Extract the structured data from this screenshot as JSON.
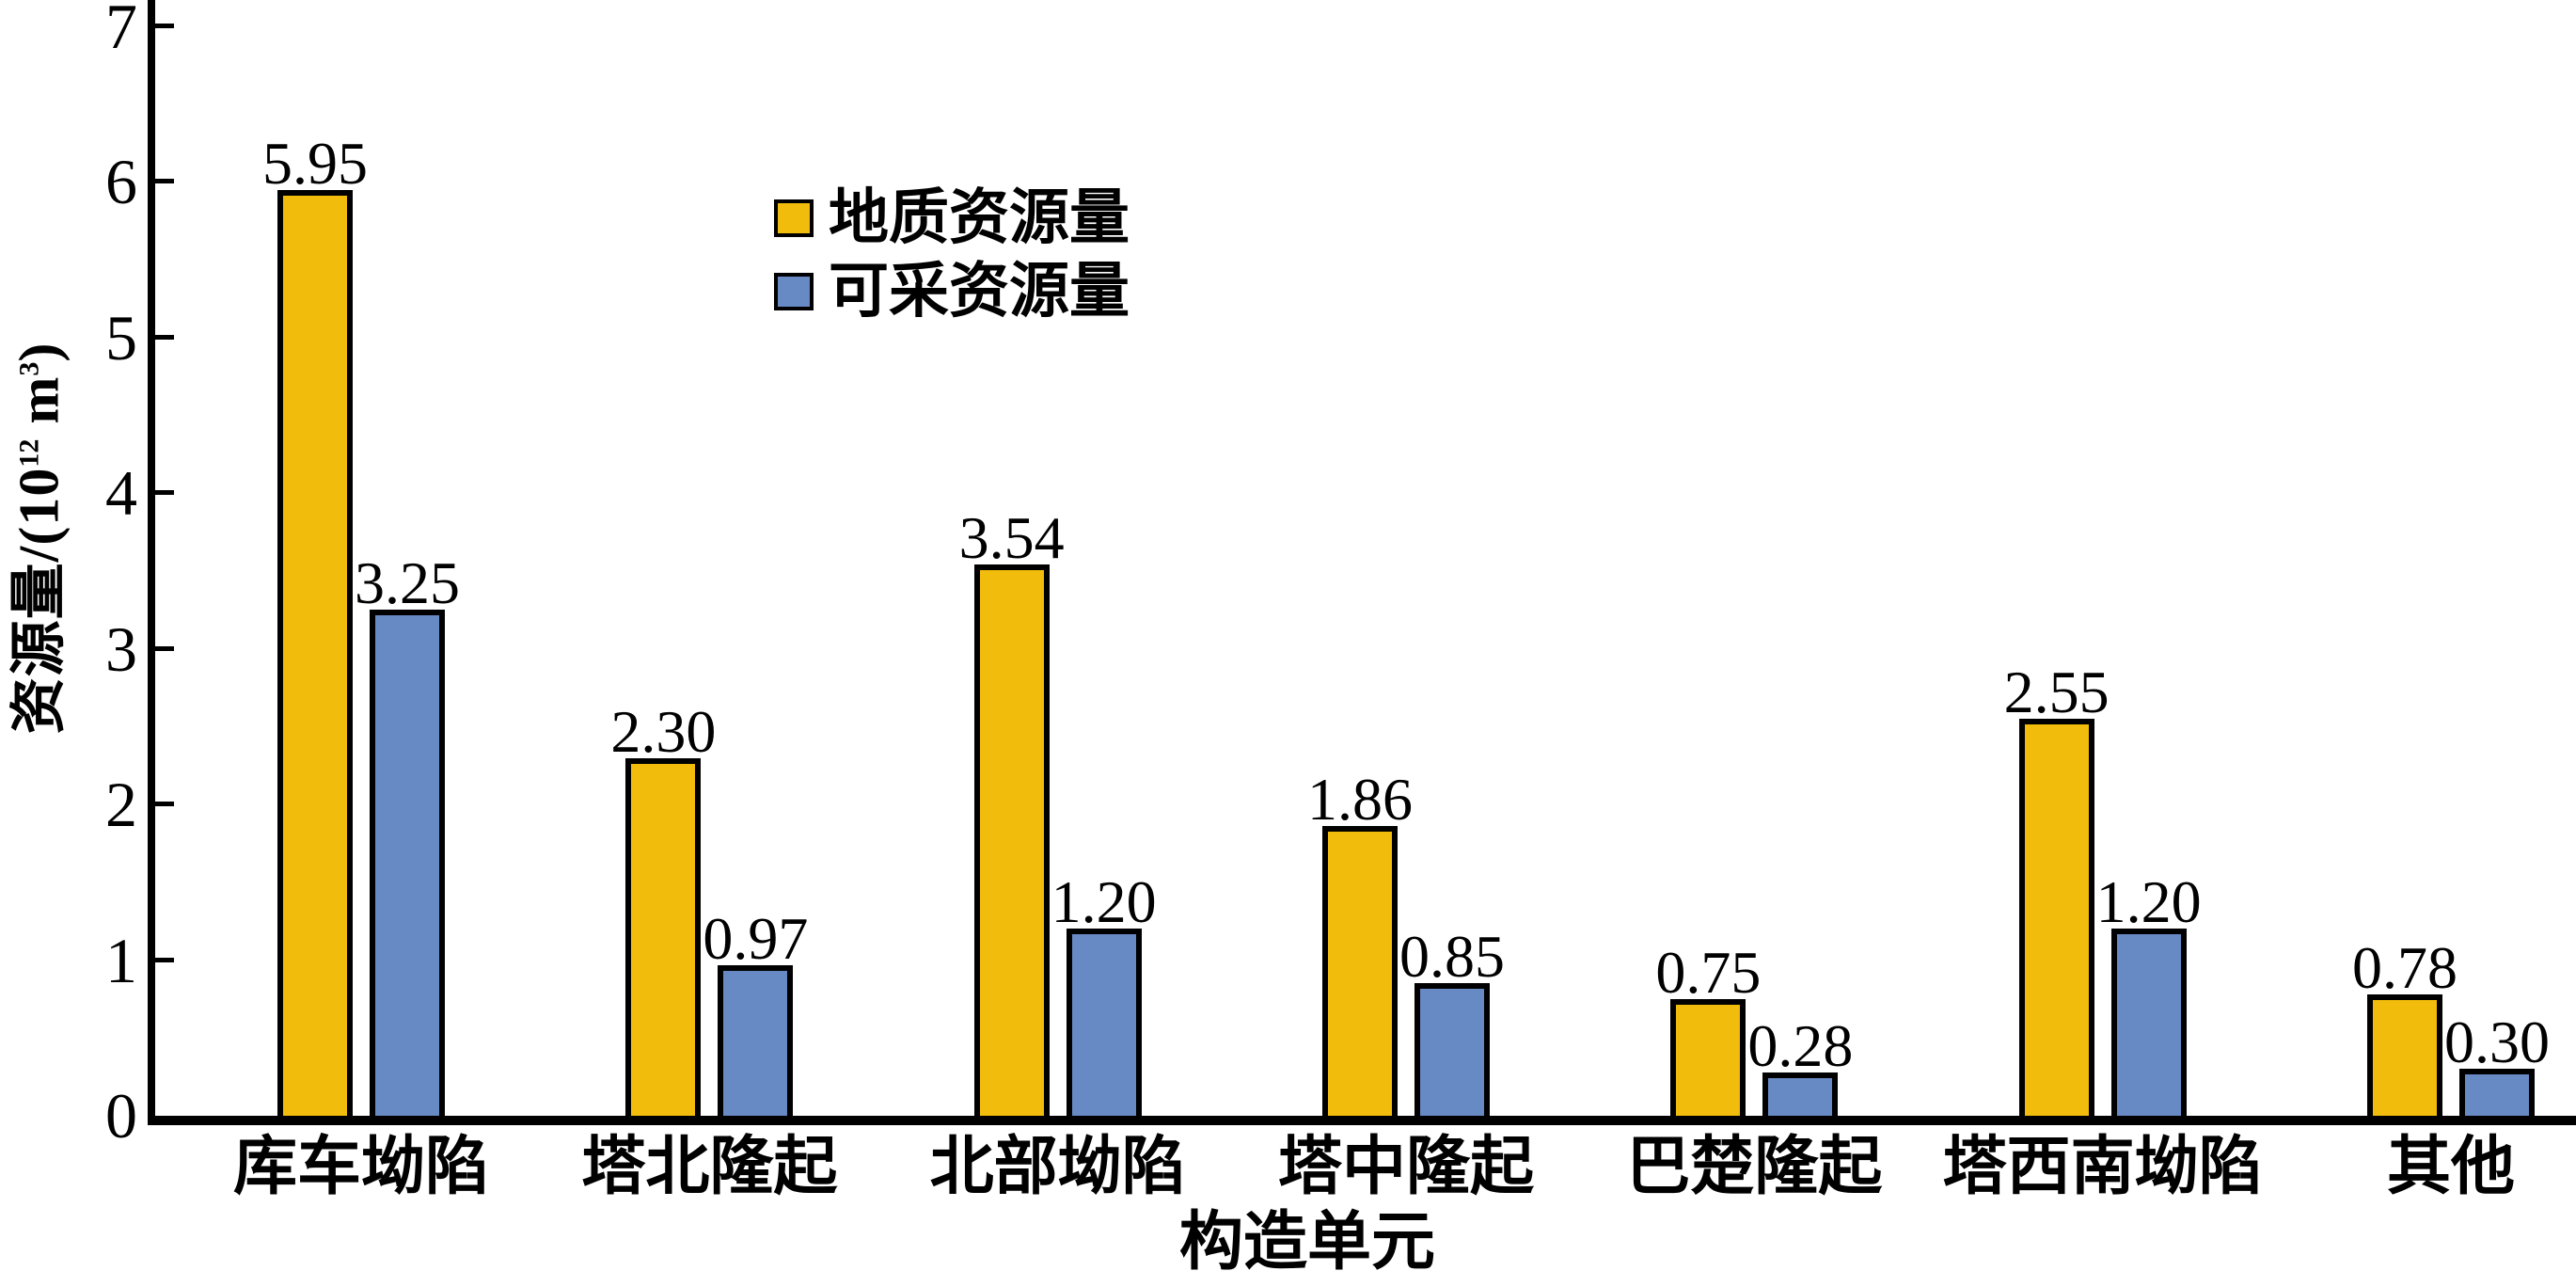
{
  "chart_data": {
    "type": "bar",
    "title": "",
    "xlabel": "构造单元",
    "ylabel": "资源量/(10¹² m³)",
    "ylabel_parts": {
      "prefix": "资源量/(10",
      "sup1": "12",
      "mid": " m",
      "sup2": "3",
      "suffix": ")"
    },
    "categories": [
      "库车坳陷",
      "塔北隆起",
      "北部坳陷",
      "塔中隆起",
      "巴楚隆起",
      "塔西南坳陷",
      "其他"
    ],
    "series": [
      {
        "name": "地质资源量",
        "color": "#F1BC0B",
        "values": [
          5.95,
          2.3,
          3.54,
          1.86,
          0.75,
          2.55,
          0.78
        ],
        "labels": [
          "5.95",
          "2.30",
          "3.54",
          "1.86",
          "0.75",
          "2.55",
          "0.78"
        ]
      },
      {
        "name": "可采资源量",
        "color": "#6789C4",
        "values": [
          3.25,
          0.97,
          1.2,
          0.85,
          0.28,
          1.2,
          0.3
        ],
        "labels": [
          "3.25",
          "0.97",
          "1.20",
          "0.85",
          "0.28",
          "1.20",
          "0.30"
        ]
      }
    ],
    "ylim": [
      0,
      7
    ],
    "yticks": [
      "0",
      "1",
      "2",
      "3",
      "4",
      "5",
      "6",
      "7"
    ],
    "grid": false,
    "legend_position": "upper-left-inside",
    "bar_outline_color": "#000000"
  },
  "colors": {
    "background": "#FFFFFF",
    "axis": "#000000"
  }
}
